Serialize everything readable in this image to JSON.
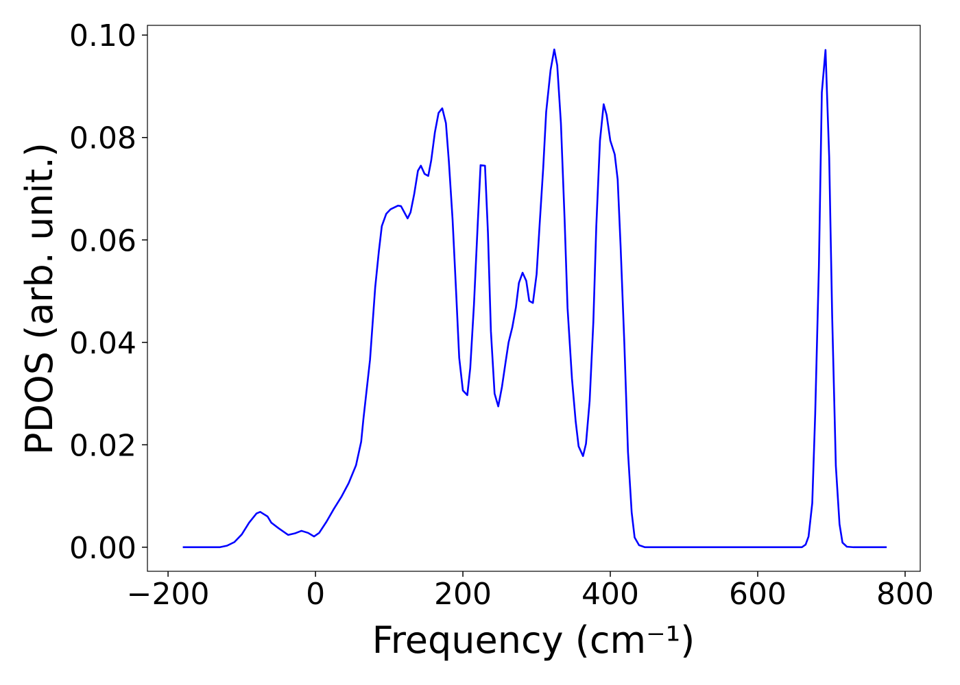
{
  "chart_data": {
    "type": "line",
    "xlabel": "Frequency (cm⁻¹)",
    "ylabel": "PDOS (arb. unit.)",
    "xlim": [
      -228,
      820.5
    ],
    "ylim": [
      -0.0047,
      0.1019
    ],
    "xticks": [
      {
        "value": -200,
        "label": "−200"
      },
      0,
      200,
      400,
      600,
      800
    ],
    "yticks": [
      {
        "value": 0,
        "label": "0.00"
      },
      {
        "value": 0.02,
        "label": "0.02"
      },
      {
        "value": 0.04,
        "label": "0.04"
      },
      {
        "value": 0.06,
        "label": "0.06"
      },
      {
        "value": 0.08,
        "label": "0.08"
      },
      {
        "value": 0.1,
        "label": "0.10"
      }
    ],
    "grid": false,
    "x": [
      -180,
      -130,
      -120,
      -110,
      -100,
      -90,
      -80,
      -75,
      -65,
      -60,
      -50,
      -37,
      -28,
      -19,
      -10,
      -2,
      5,
      15,
      25,
      35,
      45,
      55,
      62,
      65,
      74,
      81,
      86,
      90,
      96,
      102,
      112,
      116,
      125,
      129,
      134,
      139,
      143,
      148,
      153,
      157,
      162,
      167,
      172,
      177,
      181,
      186,
      191,
      195,
      200,
      206,
      210,
      215,
      220,
      224,
      230,
      234,
      238,
      243,
      248,
      253,
      258,
      262,
      267,
      272,
      276,
      281,
      286,
      290,
      295,
      300,
      304,
      309,
      313,
      319,
      324,
      328,
      333,
      338,
      342,
      348,
      353,
      357,
      363,
      367,
      372,
      377,
      381,
      386,
      391,
      395,
      400,
      406,
      410,
      414,
      419,
      424,
      429,
      433,
      439,
      447,
      660,
      665,
      669,
      674,
      678,
      683,
      687,
      692,
      697,
      701,
      706,
      711,
      715,
      721,
      730,
      775
    ],
    "series": [
      {
        "name": "PDOS",
        "color": "#0000ff",
        "values": [
          0,
          0,
          0.0003,
          0.001,
          0.0025,
          0.0048,
          0.0066,
          0.0069,
          0.006,
          0.0048,
          0.0037,
          0.0024,
          0.0027,
          0.0032,
          0.0028,
          0.0021,
          0.0028,
          0.005,
          0.0075,
          0.0098,
          0.0125,
          0.016,
          0.0206,
          0.025,
          0.0366,
          0.0507,
          0.0578,
          0.0627,
          0.0651,
          0.066,
          0.0667,
          0.0666,
          0.0642,
          0.0654,
          0.069,
          0.0735,
          0.0745,
          0.0729,
          0.0725,
          0.0755,
          0.081,
          0.0848,
          0.0857,
          0.0828,
          0.0753,
          0.064,
          0.0493,
          0.037,
          0.0306,
          0.0297,
          0.035,
          0.0473,
          0.0627,
          0.0746,
          0.0745,
          0.0614,
          0.0422,
          0.03,
          0.0275,
          0.0313,
          0.0362,
          0.04,
          0.0429,
          0.0469,
          0.0516,
          0.0536,
          0.052,
          0.0481,
          0.0477,
          0.0533,
          0.0627,
          0.0741,
          0.085,
          0.0932,
          0.0972,
          0.0941,
          0.0828,
          0.064,
          0.0467,
          0.0329,
          0.0246,
          0.0197,
          0.0178,
          0.0202,
          0.0286,
          0.044,
          0.0627,
          0.0794,
          0.0865,
          0.0844,
          0.0794,
          0.0767,
          0.0718,
          0.0587,
          0.04,
          0.0186,
          0.0068,
          0.0019,
          0.0004,
          0,
          0,
          0.0005,
          0.0021,
          0.0086,
          0.026,
          0.0547,
          0.0888,
          0.0971,
          0.0761,
          0.0453,
          0.0159,
          0.0045,
          0.0009,
          0.0001,
          0,
          0
        ]
      }
    ]
  }
}
